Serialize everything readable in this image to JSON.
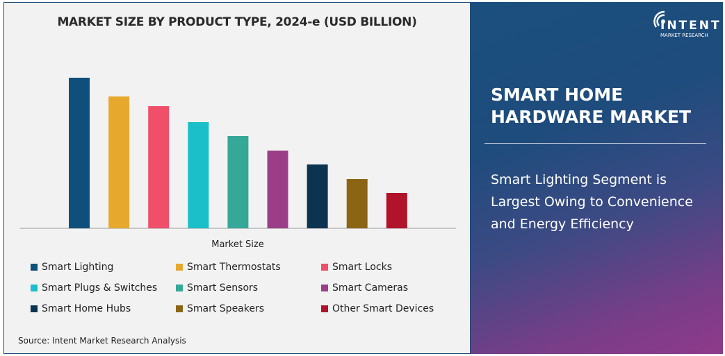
{
  "chart_data": {
    "type": "bar",
    "title": "MARKET SIZE BY PRODUCT TYPE, 2024-e (USD BILLION)",
    "xlabel": "Market Size",
    "ylabel": "",
    "grid": false,
    "legend_position": "bottom",
    "categories": [
      "Smart Lighting",
      "Smart Thermostats",
      "Smart Locks",
      "Smart Plugs & Switches",
      "Smart Sensors",
      "Smart Cameras",
      "Smart Home Hubs",
      "Smart Speakers",
      "Other Smart Devices"
    ],
    "values": [
      217,
      190,
      176,
      153,
      133,
      112,
      92,
      71,
      51
    ],
    "colors": [
      "#0e4f7b",
      "#e6a92e",
      "#ef4f69",
      "#1bbfc9",
      "#35a898",
      "#9c3d87",
      "#0c3350",
      "#8c6514",
      "#b0132a"
    ]
  },
  "source": "Source: Intent Market Research Analysis",
  "panel": {
    "logo_brand": "INTENT",
    "logo_sub": "MARKET RESEARCH",
    "title": "SMART HOME HARDWARE MARKET",
    "description": "Smart Lighting Segment is Largest Owing to Convenience and Energy Efficiency"
  }
}
